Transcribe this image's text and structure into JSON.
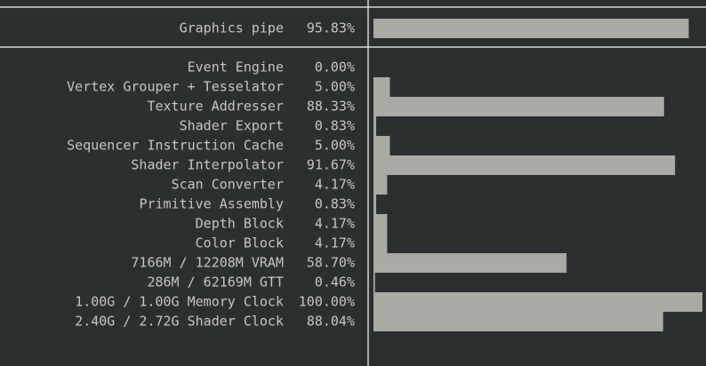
{
  "xlim": [
    0,
    100
  ],
  "top": {
    "label": "Graphics pipe",
    "value": 95.83,
    "value_label": "95.83%"
  },
  "rows": [
    {
      "label": "Event Engine",
      "value": 0.0,
      "value_label": "0.00%"
    },
    {
      "label": "Vertex Grouper + Tesselator",
      "value": 5.0,
      "value_label": "5.00%"
    },
    {
      "label": "Texture Addresser",
      "value": 88.33,
      "value_label": "88.33%"
    },
    {
      "label": "Shader Export",
      "value": 0.83,
      "value_label": "0.83%"
    },
    {
      "label": "Sequencer Instruction Cache",
      "value": 5.0,
      "value_label": "5.00%"
    },
    {
      "label": "Shader Interpolator",
      "value": 91.67,
      "value_label": "91.67%"
    },
    {
      "label": "Scan Converter",
      "value": 4.17,
      "value_label": "4.17%"
    },
    {
      "label": "Primitive Assembly",
      "value": 0.83,
      "value_label": "0.83%"
    },
    {
      "label": "Depth Block",
      "value": 4.17,
      "value_label": "4.17%"
    },
    {
      "label": "Color Block",
      "value": 4.17,
      "value_label": "4.17%"
    },
    {
      "label": "7166M / 12208M VRAM",
      "value": 58.7,
      "value_label": "58.70%"
    },
    {
      "label": "286M / 62169M GTT",
      "value": 0.46,
      "value_label": "0.46%"
    },
    {
      "label": "1.00G / 1.00G Memory Clock",
      "value": 100.0,
      "value_label": "100.00%"
    },
    {
      "label": "2.40G / 2.72G Shader Clock",
      "value": 88.04,
      "value_label": "88.04%"
    }
  ]
}
